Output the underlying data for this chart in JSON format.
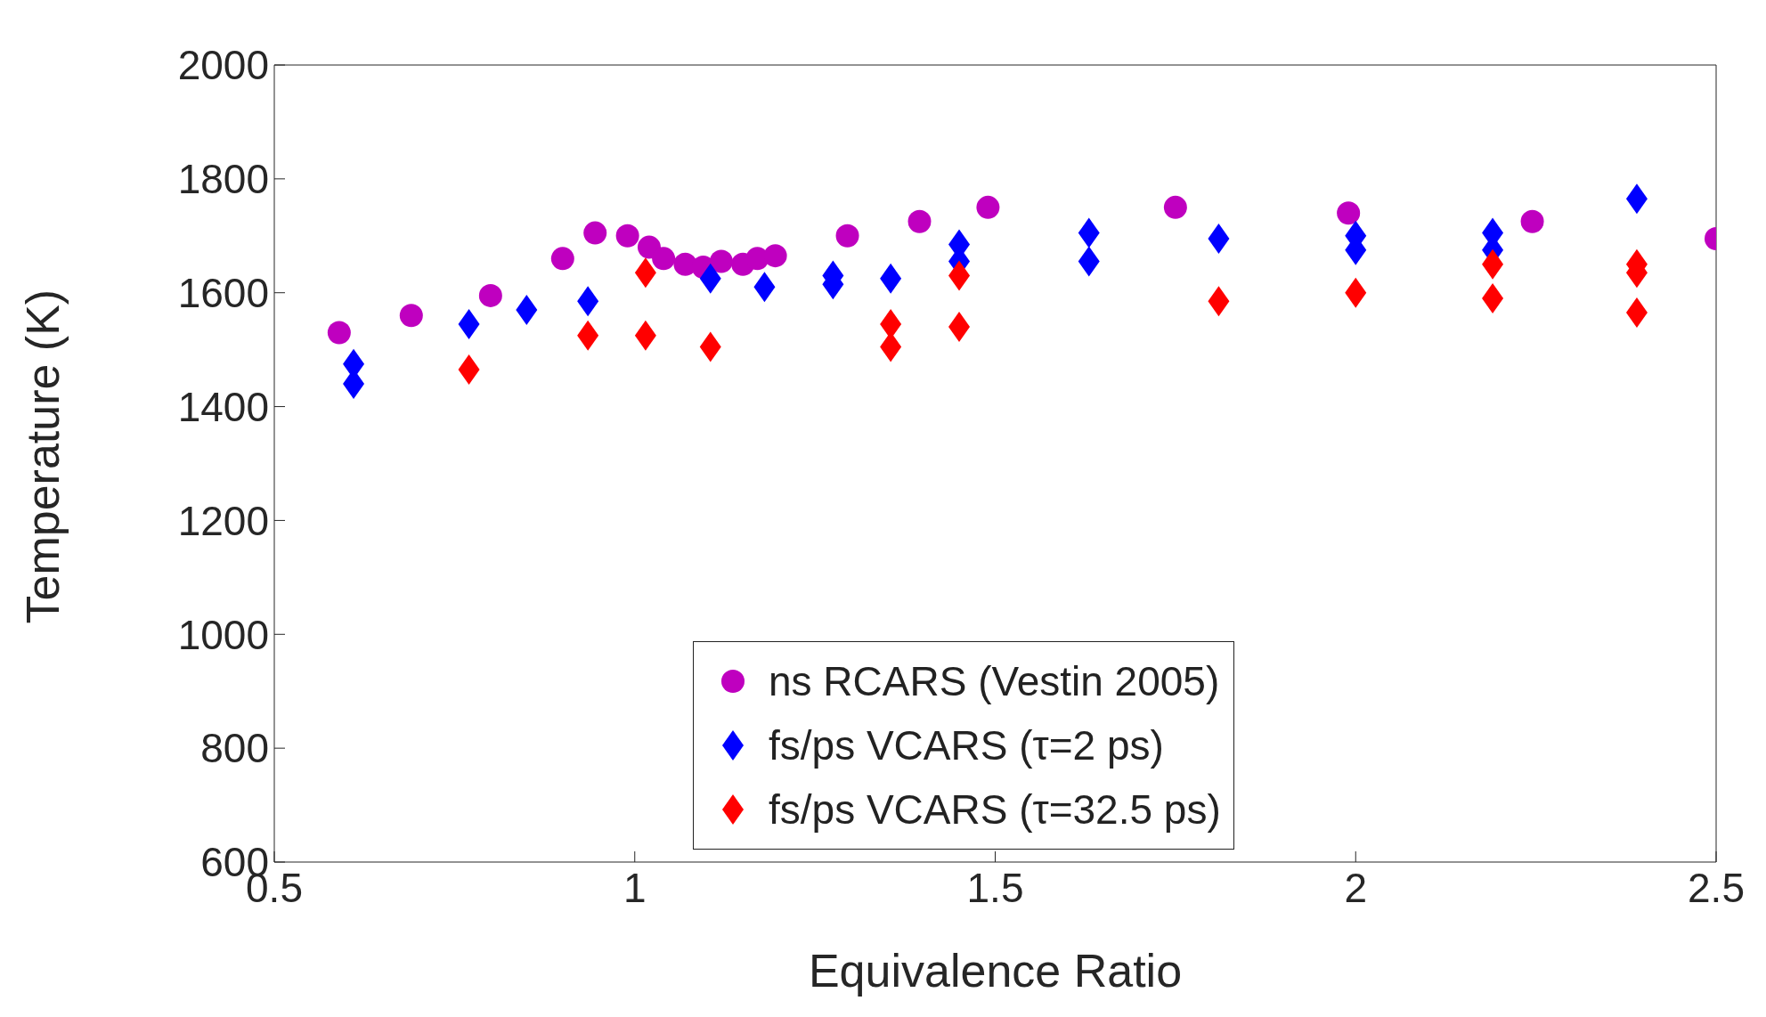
{
  "chart_data": {
    "type": "scatter",
    "xlabel": "Equivalence Ratio",
    "ylabel": "Temperature (K)",
    "xlim": [
      0.5,
      2.5
    ],
    "xticks": [
      0.5,
      1,
      1.5,
      2,
      2.5
    ],
    "ylim": [
      600,
      2000
    ],
    "yticks": [
      600,
      800,
      1000,
      1200,
      1400,
      1600,
      1800,
      2000
    ],
    "grid": false,
    "legend": "bottom",
    "series": [
      {
        "name": "ns RCARS (Vestin 2005)",
        "color": "#bf00bf",
        "marker": "circle",
        "x": [
          0.59,
          0.69,
          0.8,
          0.9,
          0.945,
          0.99,
          1.02,
          1.04,
          1.07,
          1.095,
          1.12,
          1.15,
          1.17,
          1.195,
          1.295,
          1.395,
          1.49,
          1.75,
          1.99,
          2.245,
          2.5
        ],
        "values": [
          1530,
          1560,
          1595,
          1660,
          1705,
          1700,
          1680,
          1660,
          1650,
          1645,
          1655,
          1650,
          1660,
          1665,
          1700,
          1725,
          1750,
          1750,
          1740,
          1725,
          1695
        ]
      },
      {
        "name": "fs/ps VCARS (τ=2 ps)",
        "color": "#0000ff",
        "marker": "diamond",
        "x": [
          0.61,
          0.61,
          0.77,
          0.85,
          0.935,
          1.105,
          1.18,
          1.275,
          1.275,
          1.355,
          1.45,
          1.45,
          1.63,
          1.63,
          1.81,
          2.0,
          2.0,
          2.19,
          2.19,
          2.39
        ],
        "values": [
          1475,
          1440,
          1545,
          1570,
          1585,
          1625,
          1610,
          1630,
          1615,
          1625,
          1685,
          1655,
          1705,
          1655,
          1695,
          1700,
          1675,
          1705,
          1675,
          1765
        ]
      },
      {
        "name": "fs/ps VCARS (τ=32.5 ps)",
        "color": "#ff0000",
        "marker": "diamond",
        "x": [
          0.77,
          0.935,
          1.015,
          1.015,
          1.105,
          1.355,
          1.355,
          1.45,
          1.45,
          1.81,
          2.0,
          2.19,
          2.19,
          2.39,
          2.39,
          2.39
        ],
        "values": [
          1465,
          1525,
          1635,
          1525,
          1505,
          1545,
          1505,
          1630,
          1540,
          1585,
          1600,
          1650,
          1590,
          1650,
          1635,
          1565
        ]
      }
    ]
  }
}
